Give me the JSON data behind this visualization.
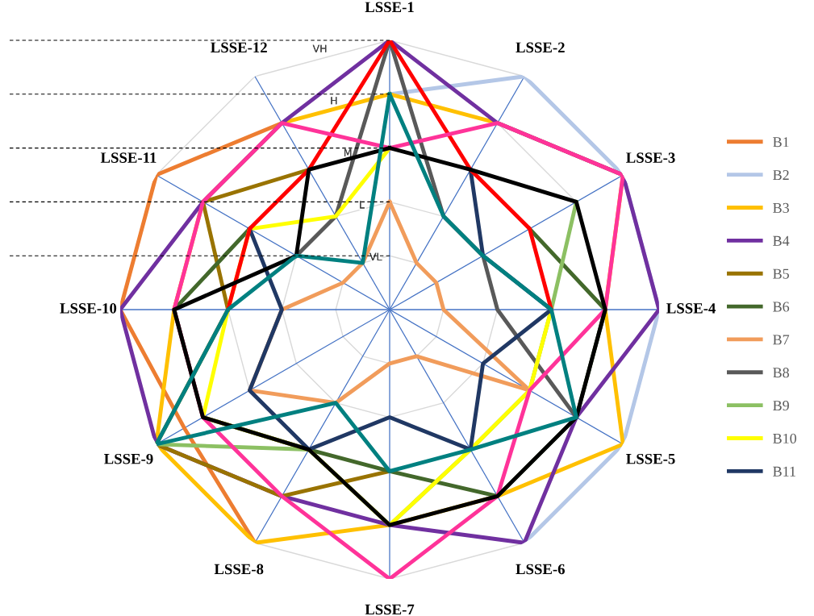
{
  "chart_data": {
    "type": "radar",
    "categories": [
      "LSSE-1",
      "LSSE-2",
      "LSSE-3",
      "LSSE-4",
      "LSSE-5",
      "LSSE-6",
      "LSSE-7",
      "LSSE-8",
      "LSSE-9",
      "LSSE-10",
      "LSSE-11",
      "LSSE-12"
    ],
    "ylim": [
      0,
      5
    ],
    "yticks": [
      {
        "value": 1,
        "label": "VL"
      },
      {
        "value": 2,
        "label": "L"
      },
      {
        "value": 3,
        "label": "M"
      },
      {
        "value": 4,
        "label": "H"
      },
      {
        "value": 5,
        "label": "VH"
      }
    ],
    "grid": true,
    "legend": "right",
    "marker": "none",
    "line_style": "solid",
    "series": [
      {
        "name": "B1",
        "color": "#ed7d31",
        "values": [
          null,
          null,
          null,
          null,
          null,
          null,
          null,
          5,
          4.4,
          5,
          5,
          4
        ]
      },
      {
        "name": "B2",
        "color": "#b4c7e7",
        "values": [
          4,
          5,
          5,
          5,
          5,
          5,
          null,
          null,
          null,
          null,
          null,
          null
        ]
      },
      {
        "name": "B3",
        "color": "#ffc000",
        "values": [
          4,
          4,
          5,
          4,
          5,
          4,
          4,
          5,
          5,
          4,
          4,
          4
        ]
      },
      {
        "name": "B4",
        "color": "#7030a0",
        "values": [
          5,
          4,
          5,
          5,
          4,
          5,
          4,
          4,
          5,
          5,
          4,
          4
        ]
      },
      {
        "name": "B5",
        "color": "#997300",
        "values": [
          null,
          null,
          null,
          null,
          null,
          null,
          3,
          4,
          5,
          3,
          4,
          3
        ]
      },
      {
        "name": "B6",
        "color": "#43682b",
        "values": [
          null,
          null,
          3,
          4,
          4,
          4,
          3,
          3,
          4,
          4,
          3,
          null
        ]
      },
      {
        "name": "B7",
        "color": "#f19c5b",
        "values": [
          2,
          1,
          1,
          1,
          3,
          1,
          1,
          2,
          3,
          2,
          1,
          1
        ]
      },
      {
        "name": "B8",
        "color": "#595959",
        "values": [
          5,
          2,
          2,
          2,
          4,
          null,
          null,
          null,
          null,
          null,
          2,
          2
        ]
      },
      {
        "name": "B9",
        "color": "#8cc063",
        "values": [
          null,
          null,
          4,
          3,
          3,
          3,
          4,
          3,
          5,
          null,
          null,
          null
        ]
      },
      {
        "name": "B10",
        "color": "#ffff00",
        "values": [
          3,
          null,
          null,
          3,
          3,
          3,
          4,
          3,
          4,
          3,
          3,
          2
        ]
      },
      {
        "name": "B11",
        "color": "#203864",
        "values": [
          null,
          3,
          2,
          3,
          2,
          3,
          2,
          3,
          3,
          2,
          3,
          null
        ]
      },
      {
        "color": "#ff0000",
        "values": [
          5,
          3,
          3,
          3,
          null,
          null,
          null,
          null,
          null,
          3,
          3,
          3
        ]
      },
      {
        "color": "#ff3399",
        "values": [
          3,
          4,
          5,
          4,
          3,
          4,
          5,
          4,
          4,
          4,
          4,
          4
        ]
      },
      {
        "color": "#000000",
        "values": [
          3,
          3,
          4,
          4,
          4,
          4,
          4,
          3,
          4,
          4,
          2,
          3
        ]
      },
      {
        "color": "#008080",
        "values": [
          4,
          2,
          2,
          3,
          4,
          3,
          3,
          2,
          5,
          3,
          2,
          1
        ]
      }
    ]
  }
}
